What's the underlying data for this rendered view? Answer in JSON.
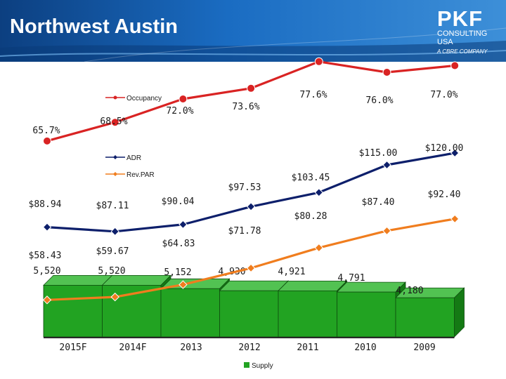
{
  "header": {
    "title": "Northwest Austin",
    "logo": {
      "mark": "PKF",
      "line1": "CONSULTING",
      "line2": "USA",
      "tagline": "A CBRE COMPANY"
    },
    "colors": {
      "band": "#1561b3",
      "band_light": "#3d8fd8",
      "band_dark": "#0c3f80"
    }
  },
  "chart_data": {
    "type": "line",
    "categories": [
      "2015F",
      "2014F",
      "2013",
      "2012",
      "2011",
      "2010",
      "2009"
    ],
    "series": [
      {
        "name": "Occupancy",
        "color": "#d92323",
        "marker": "circle",
        "values": [
          65.7,
          68.5,
          72.0,
          73.6,
          77.6,
          76.0,
          77.0
        ],
        "labels": [
          "65.7%",
          "68.5%",
          "72.0%",
          "73.6%",
          "77.6%",
          "76.0%",
          "77.0%"
        ],
        "range": [
          60,
          80
        ]
      },
      {
        "name": "ADR",
        "color": "#0d1f6b",
        "marker": "diamond",
        "values": [
          88.94,
          87.11,
          90.04,
          97.53,
          103.45,
          115.0,
          120.0
        ],
        "labels": [
          "$88.94",
          "$87.11",
          "$90.04",
          "$97.53",
          "$103.45",
          "$115.00",
          "$120.00"
        ],
        "range": [
          40,
          140
        ]
      },
      {
        "name": "Rev.PAR",
        "color": "#f07d1e",
        "marker": "diamond",
        "values": [
          58.43,
          59.67,
          64.83,
          71.78,
          80.28,
          87.4,
          92.4
        ],
        "labels": [
          "$58.43",
          "$59.67",
          "$64.83",
          "$71.78",
          "$80.28",
          "$87.40",
          "$92.40"
        ],
        "range": [
          40,
          140
        ]
      },
      {
        "name": "Supply",
        "color": "#22a322",
        "type": "bar",
        "values": [
          5520,
          5520,
          5152,
          4930,
          4921,
          4791,
          4180
        ],
        "labels": [
          "5,520",
          "5,520",
          "5,152",
          "4,930",
          "4,921",
          "4,791",
          "4,180"
        ],
        "range": [
          0,
          6000
        ]
      }
    ],
    "title": "",
    "xlabel": "",
    "ylabel": "",
    "legend": [
      "Occupancy",
      "ADR",
      "Rev.PAR",
      "Supply"
    ],
    "grid": false
  }
}
